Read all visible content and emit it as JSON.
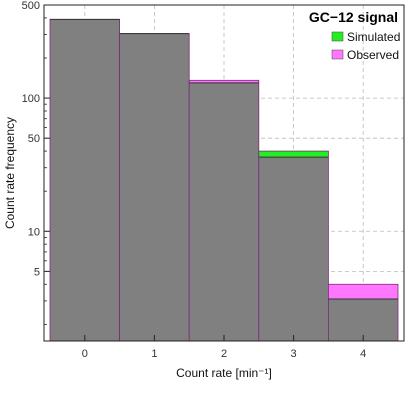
{
  "chart_data": {
    "type": "bar",
    "title": "GC−12 signal",
    "xlabel": "Count rate [min⁻¹]",
    "ylabel": "Count rate frequency",
    "categories": [
      "0",
      "1",
      "2",
      "3",
      "4"
    ],
    "y_scale": "log",
    "ylim": [
      1.5,
      500
    ],
    "yticks": [
      "5",
      "10",
      "50",
      "100",
      "500"
    ],
    "grid": true,
    "legend_position": "top-right",
    "series": [
      {
        "name": "Simulated",
        "color": "#22ee22",
        "values": [
          390,
          305,
          130,
          40,
          3.1
        ]
      },
      {
        "name": "Observed",
        "color": "#ff77ff",
        "values": [
          390,
          305,
          136,
          36,
          4.0
        ]
      }
    ],
    "overlap_color": "#808080"
  }
}
